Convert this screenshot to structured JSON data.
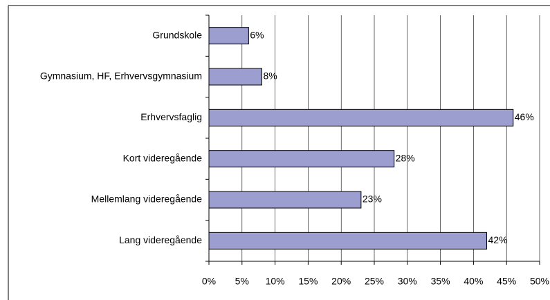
{
  "chart_data": {
    "type": "bar",
    "orientation": "horizontal",
    "categories": [
      "Grundskole",
      "Gymnasium, HF, Erhvervsgymnasium",
      "Erhvervsfaglig",
      "Kort videregående",
      "Mellemlang videregående",
      "Lang videregående"
    ],
    "values": [
      6,
      8,
      46,
      28,
      23,
      42
    ],
    "value_labels": [
      "6%",
      "8%",
      "46%",
      "28%",
      "23%",
      "42%"
    ],
    "color": "#9c9ed0",
    "xlim": [
      0,
      50
    ],
    "xticks": [
      {
        "value": 0,
        "label": "0%"
      },
      {
        "value": 5,
        "label": "5%"
      },
      {
        "value": 10,
        "label": "10%"
      },
      {
        "value": 15,
        "label": "15%"
      },
      {
        "value": 20,
        "label": "20%"
      },
      {
        "value": 25,
        "label": "25%"
      },
      {
        "value": 30,
        "label": "30%"
      },
      {
        "value": 35,
        "label": "35%"
      },
      {
        "value": 40,
        "label": "40%"
      },
      {
        "value": 45,
        "label": "45%"
      },
      {
        "value": 50,
        "label": "50%"
      }
    ],
    "grid": true
  }
}
